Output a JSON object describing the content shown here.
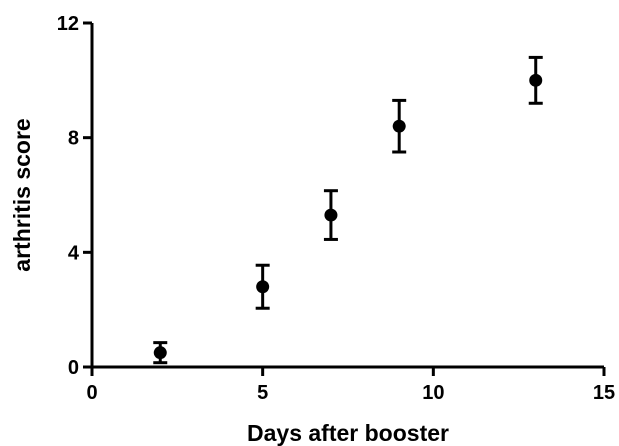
{
  "chart_data": {
    "type": "scatter",
    "xlabel": "Days after booster",
    "ylabel": "arthritis score",
    "xlim": [
      0,
      15
    ],
    "ylim": [
      0,
      12
    ],
    "xticks": [
      0,
      5,
      10,
      15
    ],
    "yticks": [
      0,
      4,
      8,
      12
    ],
    "xtick_labels": [
      "0",
      "5",
      "10",
      "15"
    ],
    "ytick_labels": [
      "0",
      "4",
      "8",
      "12"
    ],
    "grid": false,
    "series": [
      {
        "x": [
          2,
          5,
          7,
          9,
          13
        ],
        "y": [
          0.5,
          2.8,
          5.3,
          8.4,
          10.0
        ],
        "error": [
          0.35,
          0.75,
          0.85,
          0.9,
          0.8
        ],
        "marker": "circle",
        "color": "#000000"
      }
    ]
  }
}
